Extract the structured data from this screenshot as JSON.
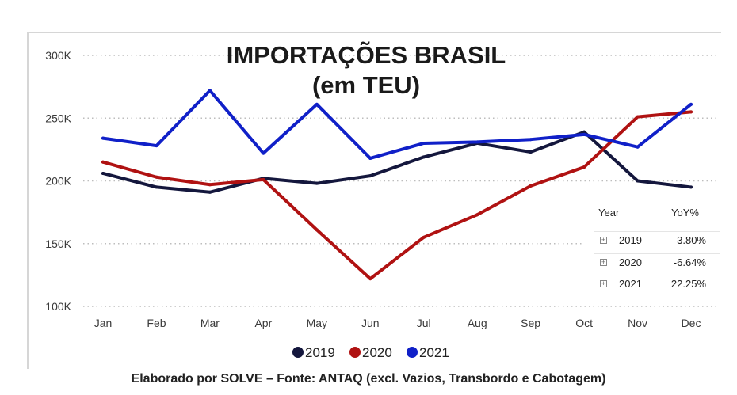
{
  "chart_data": {
    "type": "line",
    "title": "IMPORTAÇÕES BRASIL",
    "subtitle": "(em TEU)",
    "categories": [
      "Jan",
      "Feb",
      "Mar",
      "Apr",
      "May",
      "Jun",
      "Jul",
      "Aug",
      "Sep",
      "Oct",
      "Nov",
      "Dec"
    ],
    "y_ticks": [
      "100K",
      "150K",
      "200K",
      "250K",
      "300K"
    ],
    "y_tick_values": [
      100000,
      150000,
      200000,
      250000,
      300000
    ],
    "ylim": [
      100000,
      300000
    ],
    "grid": "horizontal dotted",
    "legend_position": "bottom",
    "series": [
      {
        "name": "2019",
        "color": "#14173d",
        "values": [
          206000,
          195000,
          191000,
          202000,
          198000,
          204000,
          219000,
          230000,
          223000,
          239000,
          200000,
          195000
        ]
      },
      {
        "name": "2020",
        "color": "#b01212",
        "values": [
          215000,
          203000,
          197000,
          201000,
          161000,
          122000,
          155000,
          173000,
          196000,
          211000,
          251000,
          255000
        ]
      },
      {
        "name": "2021",
        "color": "#1020c8",
        "values": [
          234000,
          228000,
          272000,
          222000,
          261000,
          218000,
          230000,
          231000,
          233000,
          237000,
          227000,
          261000
        ]
      }
    ]
  },
  "yoy_table": {
    "col_year": "Year",
    "col_yoy": "YoY%",
    "rows": [
      {
        "year": "2019",
        "yoy": "3.80%"
      },
      {
        "year": "2020",
        "yoy": "-6.64%"
      },
      {
        "year": "2021",
        "yoy": "22.25%"
      }
    ]
  },
  "source_note": "Elaborado por SOLVE – Fonte: ANTAQ (excl. Vazios, Transbordo e Cabotagem)"
}
